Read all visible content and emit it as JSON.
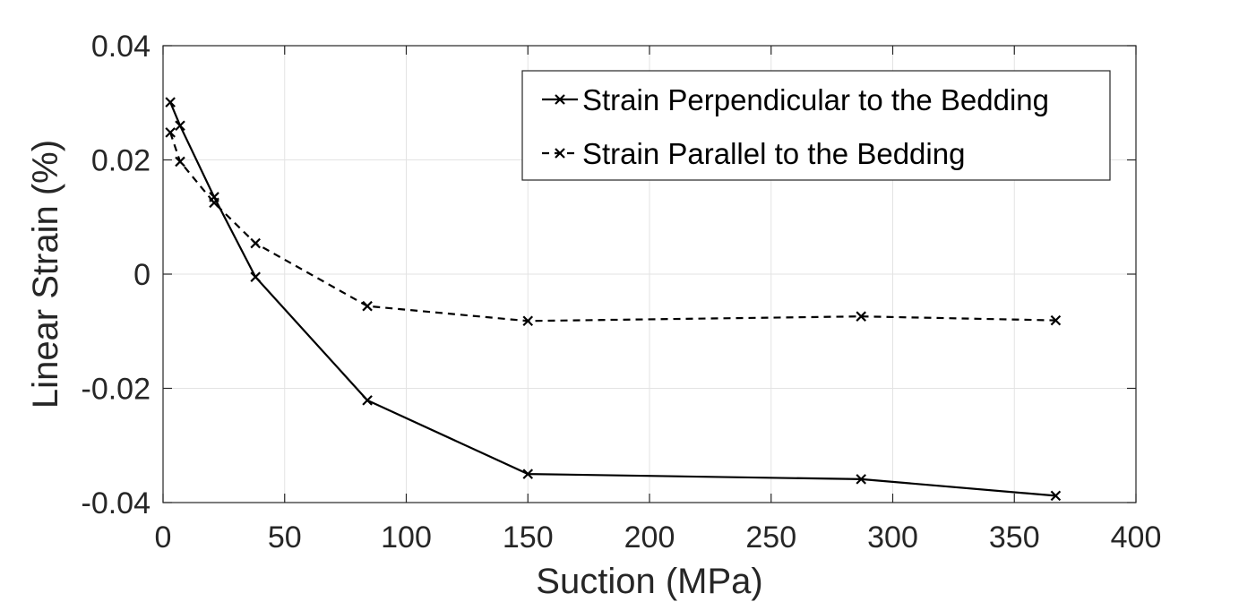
{
  "chart_data": {
    "type": "line",
    "title": "",
    "xlabel": "Suction (MPa)",
    "ylabel": "Linear Strain (%)",
    "xlim": [
      0,
      400
    ],
    "ylim": [
      -0.04,
      0.04
    ],
    "xticks": [
      0,
      50,
      100,
      150,
      200,
      250,
      300,
      350,
      400
    ],
    "yticks": [
      -0.04,
      -0.02,
      0,
      0.02,
      0.04
    ],
    "xtick_labels": [
      "0",
      "50",
      "100",
      "150",
      "200",
      "250",
      "300",
      "350",
      "400"
    ],
    "ytick_labels": [
      "-0.04",
      "-0.02",
      "0",
      "0.02",
      "0.04"
    ],
    "grid": true,
    "legend_position": "top-right",
    "series": [
      {
        "name": "Strain Perpendicular to the Bedding",
        "line_style": "solid",
        "marker": "x",
        "color": "#000000",
        "x": [
          3,
          7,
          21,
          38,
          84,
          150,
          287,
          367
        ],
        "y": [
          0.0301,
          0.026,
          0.0135,
          -0.0005,
          -0.0221,
          -0.035,
          -0.0359,
          -0.0388
        ]
      },
      {
        "name": "Strain Parallel to the Bedding",
        "line_style": "dashed",
        "marker": "x",
        "color": "#000000",
        "x": [
          3,
          7,
          21,
          38,
          84,
          150,
          287,
          367
        ],
        "y": [
          0.0248,
          0.0197,
          0.0125,
          0.0054,
          -0.0056,
          -0.0082,
          -0.0074,
          -0.0081
        ]
      }
    ]
  }
}
